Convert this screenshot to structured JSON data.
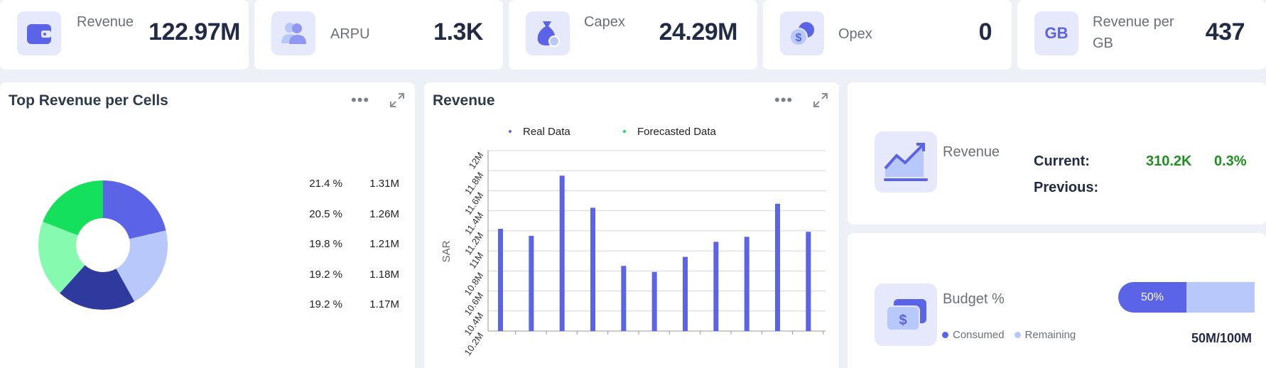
{
  "kpis": [
    {
      "label": "Revenue",
      "value": "122.97M",
      "icon": "wallet-icon"
    },
    {
      "label": "ARPU",
      "value": "1.3K",
      "icon": "users-icon"
    },
    {
      "label": "Capex",
      "value": "24.29M",
      "icon": "money-bag-icon"
    },
    {
      "label": "Opex",
      "value": "0",
      "icon": "coins-icon"
    },
    {
      "label": "Revenue per GB",
      "value": "437",
      "icon": "gb-icon"
    }
  ],
  "donut_panel": {
    "title": "Top Revenue per Cells",
    "rows": [
      {
        "pct": "21.4 %",
        "value": "1.31M"
      },
      {
        "pct": "20.5 %",
        "value": "1.26M"
      },
      {
        "pct": "19.8 %",
        "value": "1.21M"
      },
      {
        "pct": "19.2 %",
        "value": "1.18M"
      },
      {
        "pct": "19.2 %",
        "value": "1.17M"
      }
    ]
  },
  "bar_panel": {
    "title": "Revenue",
    "legend": [
      "Real Data",
      "Forecasted Data"
    ]
  },
  "revenue_compare": {
    "label": "Revenue",
    "current_label": "Current:",
    "current_value": "310.2K",
    "current_change": "0.3%",
    "previous_label": "Previous:"
  },
  "budget": {
    "label": "Budget %",
    "consumed_pct": "50%",
    "consumed_fraction": 0.5,
    "legend_consumed": "Consumed",
    "legend_remaining": "Remaining",
    "amount": "50M/100M"
  },
  "colors": {
    "accent": "#5b63e6",
    "accent_light": "#b8c8fb",
    "dark_blue": "#2e3a9e",
    "green_bright": "#14e05c",
    "green_light": "#86fbb0",
    "positive": "#1f8f1f"
  },
  "chart_data": [
    {
      "type": "pie",
      "title": "Top Revenue per Cells",
      "labels": [
        "21.4 %",
        "20.5 %",
        "19.8 %",
        "19.2 %",
        "19.2 %"
      ],
      "values": [
        1.31,
        1.26,
        1.21,
        1.18,
        1.17
      ],
      "colors": [
        "#5b63e6",
        "#b8c8fb",
        "#2e3a9e",
        "#86fbb0",
        "#14e05c"
      ]
    },
    {
      "type": "bar",
      "title": "Revenue",
      "ylabel": "SAR",
      "ylim": [
        10.2,
        12.0
      ],
      "yticks": [
        "10.2M",
        "10.4M",
        "10.6M",
        "10.8M",
        "11M",
        "11.2M",
        "11.4M",
        "11.6M",
        "11.8M",
        "12M"
      ],
      "series": [
        {
          "name": "Real Data",
          "values": [
            11.22,
            11.15,
            11.75,
            11.43,
            10.85,
            10.79,
            10.94,
            11.09,
            11.14,
            11.47,
            11.19
          ]
        },
        {
          "name": "Forecasted Data",
          "values": []
        }
      ],
      "legend": "top",
      "grid": true
    }
  ]
}
